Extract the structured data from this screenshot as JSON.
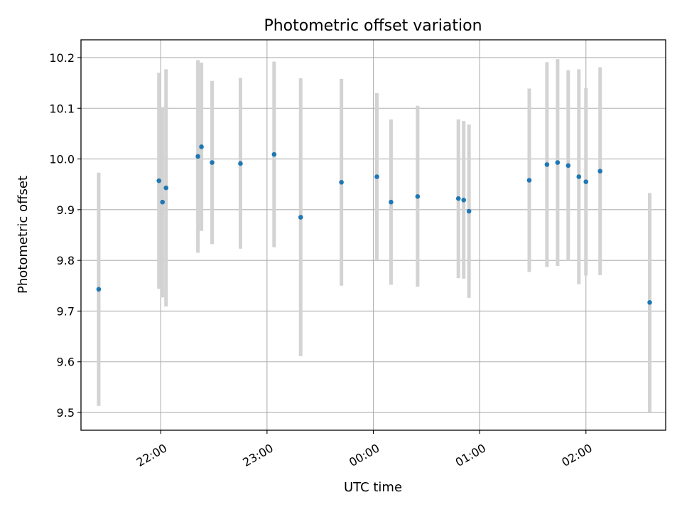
{
  "chart_data": {
    "type": "scatter",
    "title": "Photometric offset variation",
    "xlabel": "UTC time",
    "ylabel": "Photometric offset",
    "xlim": [
      "2000-01-01T21:15:00",
      "2000-01-02T02:45:00"
    ],
    "ylim": [
      9.465,
      10.235
    ],
    "grid": true,
    "x_ticks": [
      {
        "value": "2000-01-01T22:00:00",
        "label": "22:00"
      },
      {
        "value": "2000-01-01T23:00:00",
        "label": "23:00"
      },
      {
        "value": "2000-01-02T00:00:00",
        "label": "00:00"
      },
      {
        "value": "2000-01-02T01:00:00",
        "label": "01:00"
      },
      {
        "value": "2000-01-02T02:00:00",
        "label": "02:00"
      }
    ],
    "y_ticks": [
      {
        "value": 9.5,
        "label": "9.5"
      },
      {
        "value": 9.6,
        "label": "9.6"
      },
      {
        "value": 9.7,
        "label": "9.7"
      },
      {
        "value": 9.8,
        "label": "9.8"
      },
      {
        "value": 9.9,
        "label": "9.9"
      },
      {
        "value": 10.0,
        "label": "10.0"
      },
      {
        "value": 10.1,
        "label": "10.1"
      },
      {
        "value": 10.2,
        "label": "10.2"
      }
    ],
    "marker_color": "#1f77b4",
    "errorbar_color": "#d3d3d3",
    "points": [
      {
        "x": "2000-01-01T21:25:00",
        "y": 9.743,
        "low": 9.513,
        "high": 9.973
      },
      {
        "x": "2000-01-01T21:59:00",
        "y": 9.957,
        "low": 9.744,
        "high": 10.17
      },
      {
        "x": "2000-01-01T22:01:00",
        "y": 9.915,
        "low": 9.727,
        "high": 10.102
      },
      {
        "x": "2000-01-01T22:03:00",
        "y": 9.943,
        "low": 9.709,
        "high": 10.177
      },
      {
        "x": "2000-01-01T22:21:00",
        "y": 10.005,
        "low": 9.815,
        "high": 10.195
      },
      {
        "x": "2000-01-01T22:23:00",
        "y": 10.024,
        "low": 9.858,
        "high": 10.19
      },
      {
        "x": "2000-01-01T22:29:00",
        "y": 9.993,
        "low": 9.832,
        "high": 10.154
      },
      {
        "x": "2000-01-01T22:45:00",
        "y": 9.991,
        "low": 9.823,
        "high": 10.16
      },
      {
        "x": "2000-01-01T23:04:00",
        "y": 10.009,
        "low": 9.826,
        "high": 10.192
      },
      {
        "x": "2000-01-01T23:19:00",
        "y": 9.885,
        "low": 9.611,
        "high": 10.159
      },
      {
        "x": "2000-01-01T23:42:00",
        "y": 9.954,
        "low": 9.75,
        "high": 10.158
      },
      {
        "x": "2000-01-02T00:02:00",
        "y": 9.965,
        "low": 9.8,
        "high": 10.13
      },
      {
        "x": "2000-01-02T00:10:00",
        "y": 9.915,
        "low": 9.752,
        "high": 10.078
      },
      {
        "x": "2000-01-02T00:25:00",
        "y": 9.926,
        "low": 9.748,
        "high": 10.105
      },
      {
        "x": "2000-01-02T00:48:00",
        "y": 9.922,
        "low": 9.765,
        "high": 10.078
      },
      {
        "x": "2000-01-02T00:51:00",
        "y": 9.919,
        "low": 9.764,
        "high": 10.075
      },
      {
        "x": "2000-01-02T00:54:00",
        "y": 9.897,
        "low": 9.726,
        "high": 10.068
      },
      {
        "x": "2000-01-02T01:28:00",
        "y": 9.958,
        "low": 9.777,
        "high": 10.139
      },
      {
        "x": "2000-01-02T01:38:00",
        "y": 9.989,
        "low": 9.787,
        "high": 10.191
      },
      {
        "x": "2000-01-02T01:44:00",
        "y": 9.993,
        "low": 9.789,
        "high": 10.197
      },
      {
        "x": "2000-01-02T01:50:00",
        "y": 9.987,
        "low": 9.799,
        "high": 10.175
      },
      {
        "x": "2000-01-02T01:56:00",
        "y": 9.965,
        "low": 9.753,
        "high": 10.177
      },
      {
        "x": "2000-01-02T02:00:00",
        "y": 9.955,
        "low": 9.77,
        "high": 10.14
      },
      {
        "x": "2000-01-02T02:08:00",
        "y": 9.976,
        "low": 9.771,
        "high": 10.181
      },
      {
        "x": "2000-01-02T02:36:00",
        "y": 9.717,
        "low": 9.501,
        "high": 9.933
      }
    ]
  }
}
